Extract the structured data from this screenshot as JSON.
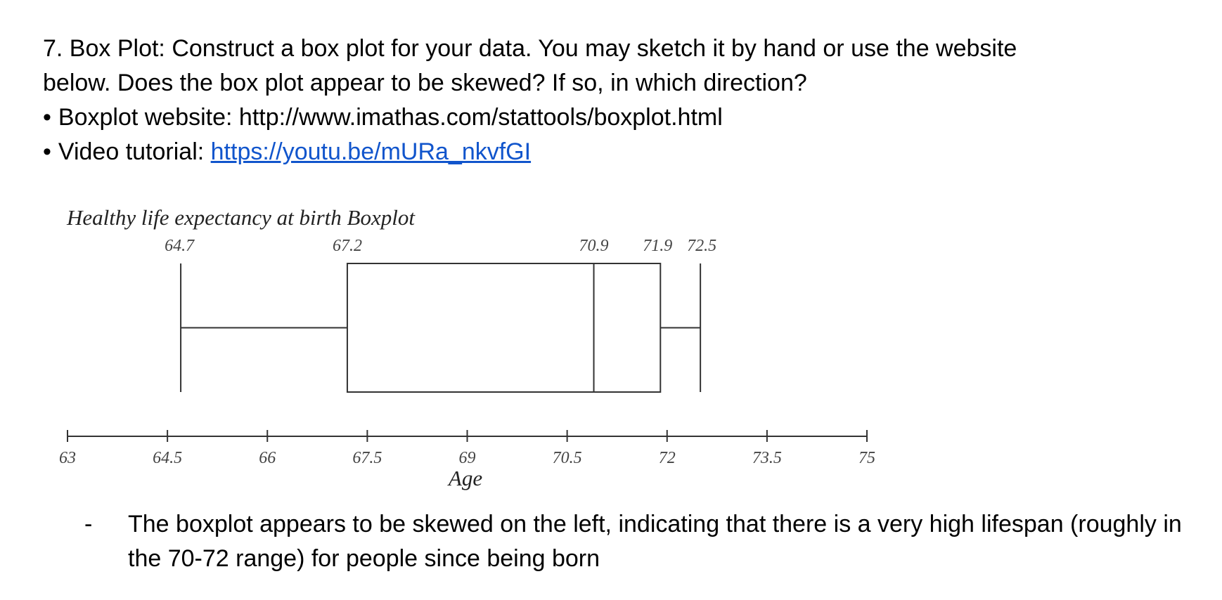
{
  "question": {
    "line1": "7. Box Plot: Construct a box plot for your data. You may sketch it by hand or use the website",
    "line2": "below. Does the box plot appear to be skewed? If so, in which direction?",
    "bullet1": "Boxplot website: http://www.imathas.com/stattools/boxplot.html",
    "bullet2_label": "Video tutorial: ",
    "bullet2_link": "https://youtu.be/mURa_nkvfGI"
  },
  "chart_data": {
    "type": "boxplot",
    "title": "Healthy life expectancy at birth Boxplot",
    "xlabel": "Age",
    "xlim": [
      63,
      75
    ],
    "ticks": [
      63,
      64.5,
      66,
      67.5,
      69,
      70.5,
      72,
      73.5,
      75
    ],
    "tick_labels": [
      "63",
      "64.5",
      "66",
      "67.5",
      "69",
      "70.5",
      "72",
      "73.5",
      "75"
    ],
    "min": 64.7,
    "q1": 67.2,
    "median": 70.9,
    "q3": 71.9,
    "max": 72.5,
    "value_labels": [
      "64.7",
      "67.2",
      "70.9",
      "71.9",
      "72.5"
    ]
  },
  "answer": {
    "dash": "-",
    "text": "The boxplot appears to be skewed on the left, indicating that there is a very high lifespan (roughly in the 70-72 range) for people since being born"
  }
}
